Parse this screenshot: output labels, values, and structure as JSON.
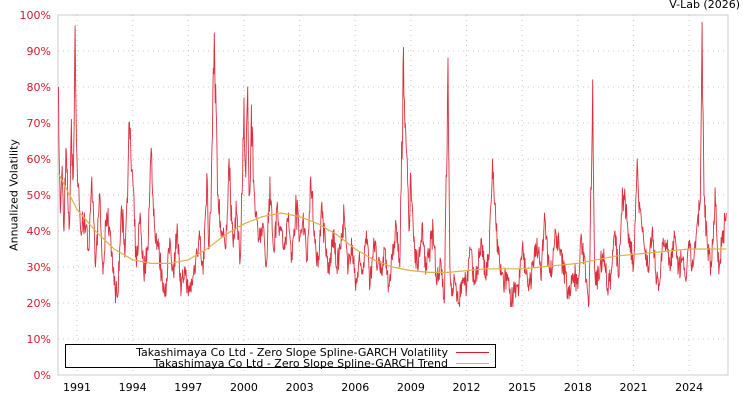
{
  "header": {
    "credit": "V-Lab (2026)"
  },
  "legend": {
    "items": [
      {
        "label": "Takashimaya Co Ltd - Zero Slope Spline-GARCH Volatility",
        "color": "#d7192a"
      },
      {
        "label": "Takashimaya Co Ltd - Zero Slope Spline-GARCH Trend",
        "color": "#e0b04a"
      }
    ]
  },
  "chart_data": {
    "type": "line",
    "title": "",
    "xlabel": "",
    "ylabel": "Annualized Volatility",
    "ylim": [
      0,
      100
    ],
    "xlim": [
      1990.0,
      2026.1
    ],
    "grid": true,
    "legend_position": "bottom-left inside",
    "x_ticks": [
      "1991",
      "1994",
      "1997",
      "2000",
      "2003",
      "2006",
      "2009",
      "2012",
      "2015",
      "2018",
      "2021",
      "2024"
    ],
    "y_ticks": [
      "0%",
      "10%",
      "20%",
      "30%",
      "40%",
      "50%",
      "60%",
      "70%",
      "80%",
      "90%",
      "100%"
    ],
    "series": [
      {
        "name": "Takashimaya Co Ltd - Zero Slope Spline-GARCH Volatility",
        "color": "#d7192a",
        "x": [
          1990.0,
          1990.1,
          1990.2,
          1990.3,
          1990.4,
          1990.5,
          1990.6,
          1990.7,
          1990.8,
          1990.9,
          1991.0,
          1991.2,
          1991.4,
          1991.6,
          1991.8,
          1992.0,
          1992.2,
          1992.4,
          1992.6,
          1992.8,
          1993.0,
          1993.2,
          1993.4,
          1993.6,
          1993.8,
          1994.0,
          1994.2,
          1994.4,
          1994.6,
          1994.8,
          1995.0,
          1995.2,
          1995.4,
          1995.6,
          1995.8,
          1996.0,
          1996.2,
          1996.4,
          1996.6,
          1996.8,
          1997.0,
          1997.2,
          1997.4,
          1997.6,
          1997.8,
          1998.0,
          1998.1,
          1998.2,
          1998.4,
          1998.6,
          1998.8,
          1999.0,
          1999.2,
          1999.4,
          1999.6,
          1999.8,
          2000.0,
          2000.1,
          2000.2,
          2000.3,
          2000.4,
          2000.6,
          2000.8,
          2001.0,
          2001.2,
          2001.4,
          2001.6,
          2001.8,
          2002.0,
          2002.2,
          2002.4,
          2002.6,
          2002.8,
          2003.0,
          2003.2,
          2003.4,
          2003.6,
          2003.8,
          2004.0,
          2004.2,
          2004.4,
          2004.6,
          2004.8,
          2005.0,
          2005.2,
          2005.4,
          2005.6,
          2005.8,
          2006.0,
          2006.2,
          2006.4,
          2006.6,
          2006.8,
          2007.0,
          2007.2,
          2007.4,
          2007.6,
          2007.8,
          2008.0,
          2008.2,
          2008.4,
          2008.6,
          2008.8,
          2008.9,
          2009.0,
          2009.2,
          2009.4,
          2009.6,
          2009.8,
          2010.0,
          2010.2,
          2010.4,
          2010.6,
          2010.8,
          2011.0,
          2011.1,
          2011.2,
          2011.4,
          2011.6,
          2011.8,
          2012.0,
          2012.2,
          2012.4,
          2012.6,
          2012.8,
          2013.0,
          2013.2,
          2013.4,
          2013.6,
          2013.8,
          2014.0,
          2014.2,
          2014.4,
          2014.6,
          2014.8,
          2015.0,
          2015.2,
          2015.4,
          2015.6,
          2015.8,
          2016.0,
          2016.2,
          2016.4,
          2016.6,
          2016.8,
          2017.0,
          2017.2,
          2017.4,
          2017.6,
          2017.8,
          2018.0,
          2018.2,
          2018.4,
          2018.6,
          2018.8,
          2018.9,
          2019.0,
          2019.2,
          2019.4,
          2019.6,
          2019.8,
          2020.0,
          2020.2,
          2020.4,
          2020.6,
          2020.8,
          2021.0,
          2021.2,
          2021.4,
          2021.6,
          2021.8,
          2022.0,
          2022.2,
          2022.4,
          2022.6,
          2022.8,
          2023.0,
          2023.2,
          2023.4,
          2023.6,
          2023.8,
          2024.0,
          2024.2,
          2024.4,
          2024.6,
          2024.7,
          2024.8,
          2025.0,
          2025.2,
          2025.4,
          2025.6,
          2025.8,
          2026.0
        ],
        "values": [
          80,
          45,
          58,
          40,
          63,
          50,
          42,
          71,
          55,
          97,
          60,
          40,
          45,
          35,
          55,
          30,
          50,
          28,
          45,
          40,
          25,
          22,
          47,
          35,
          70,
          55,
          30,
          45,
          28,
          35,
          63,
          40,
          35,
          26,
          22,
          38,
          28,
          42,
          22,
          30,
          22,
          25,
          32,
          40,
          28,
          56,
          35,
          45,
          95,
          50,
          40,
          35,
          60,
          38,
          45,
          32,
          77,
          55,
          80,
          50,
          75,
          45,
          38,
          42,
          30,
          55,
          35,
          48,
          40,
          35,
          45,
          32,
          50,
          38,
          45,
          32,
          55,
          40,
          30,
          48,
          35,
          28,
          40,
          30,
          35,
          45,
          28,
          38,
          25,
          32,
          28,
          40,
          25,
          38,
          30,
          28,
          35,
          25,
          32,
          42,
          30,
          91,
          60,
          40,
          55,
          35,
          30,
          42,
          28,
          35,
          40,
          25,
          32,
          20,
          88,
          30,
          22,
          25,
          20,
          27,
          24,
          35,
          25,
          30,
          38,
          27,
          32,
          60,
          40,
          30,
          24,
          28,
          20,
          25,
          22,
          35,
          28,
          25,
          30,
          38,
          27,
          45,
          32,
          28,
          40,
          35,
          30,
          25,
          22,
          28,
          24,
          38,
          30,
          20,
          82,
          30,
          25,
          30,
          35,
          24,
          28,
          40,
          27,
          52,
          45,
          38,
          30,
          60,
          45,
          35,
          30,
          40,
          28,
          25,
          38,
          35,
          30,
          40,
          28,
          32,
          27,
          35,
          30,
          40,
          48,
          98,
          50,
          35,
          30,
          52,
          28,
          40,
          45
        ],
        "note": "values approximate, read from rendered pixels"
      },
      {
        "name": "Takashimaya Co Ltd - Zero Slope Spline-GARCH Trend",
        "color": "#e0b04a",
        "x": [
          1990.0,
          1991.0,
          1992.0,
          1993.0,
          1994.0,
          1995.0,
          1996.0,
          1997.0,
          1998.0,
          1999.0,
          2000.0,
          2001.0,
          2002.0,
          2003.0,
          2004.0,
          2005.0,
          2006.0,
          2007.0,
          2008.0,
          2009.0,
          2010.0,
          2011.0,
          2012.0,
          2013.0,
          2014.0,
          2015.0,
          2016.0,
          2017.0,
          2018.0,
          2019.0,
          2020.0,
          2021.0,
          2022.0,
          2023.0,
          2024.0,
          2025.0,
          2026.0
        ],
        "values": [
          56,
          46,
          40,
          35,
          32,
          31,
          31,
          32,
          35,
          39,
          42,
          44,
          45,
          44,
          42,
          39,
          35,
          32,
          30,
          29,
          28.5,
          28.5,
          29,
          29.5,
          29.5,
          29.5,
          30,
          30.5,
          31,
          32,
          33,
          33.5,
          34,
          34.5,
          35,
          35,
          35
        ]
      }
    ]
  }
}
